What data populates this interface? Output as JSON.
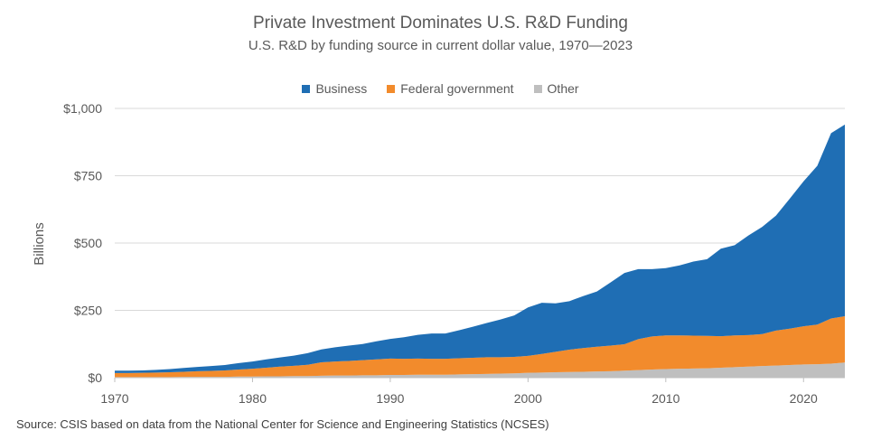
{
  "chart_data": {
    "type": "area",
    "title": "Private Investment Dominates U.S. R&D Funding",
    "subtitle": "U.S. R&D by funding source in current dollar value, 1970—2023",
    "xlabel": "",
    "ylabel": "Billions",
    "x_ticks": [
      "1970",
      "1980",
      "1990",
      "2000",
      "2010",
      "2020"
    ],
    "y_ticks": [
      "$0",
      "$250",
      "$500",
      "$750",
      "$1,000"
    ],
    "ylim": [
      0,
      1000
    ],
    "xlim": [
      1970,
      2023
    ],
    "stacked": true,
    "legend_position": "top-center",
    "x": [
      1970,
      1971,
      1972,
      1973,
      1974,
      1975,
      1976,
      1977,
      1978,
      1979,
      1980,
      1981,
      1982,
      1983,
      1984,
      1985,
      1986,
      1987,
      1988,
      1989,
      1990,
      1991,
      1992,
      1993,
      1994,
      1995,
      1996,
      1997,
      1998,
      1999,
      2000,
      2001,
      2002,
      2003,
      2004,
      2005,
      2006,
      2007,
      2008,
      2009,
      2010,
      2011,
      2012,
      2013,
      2014,
      2015,
      2016,
      2017,
      2018,
      2019,
      2020,
      2021,
      2022,
      2023
    ],
    "series": [
      {
        "name": "Other",
        "color": "#BFBFBF",
        "values": [
          2,
          2,
          2,
          2,
          2,
          3,
          3,
          3,
          3,
          4,
          4,
          5,
          5,
          6,
          6,
          7,
          8,
          8,
          9,
          9,
          10,
          10,
          11,
          11,
          11,
          12,
          13,
          14,
          15,
          16,
          18,
          19,
          20,
          21,
          22,
          23,
          24,
          26,
          28,
          30,
          32,
          33,
          34,
          35,
          37,
          39,
          41,
          43,
          45,
          47,
          49,
          50,
          52,
          56
        ]
      },
      {
        "name": "Federal government",
        "color": "#F28B2C",
        "values": [
          15,
          15,
          16,
          17,
          18,
          19,
          21,
          22,
          24,
          26,
          29,
          32,
          36,
          38,
          42,
          50,
          52,
          54,
          56,
          59,
          61,
          60,
          60,
          59,
          59,
          60,
          61,
          62,
          61,
          61,
          63,
          69,
          76,
          83,
          88,
          92,
          95,
          98,
          115,
          123,
          125,
          124,
          122,
          120,
          117,
          118,
          117,
          119,
          130,
          135,
          142,
          147,
          168,
          172
        ]
      },
      {
        "name": "Business",
        "color": "#1F6EB4",
        "values": [
          9,
          9,
          9,
          10,
          12,
          14,
          16,
          18,
          20,
          24,
          27,
          31,
          34,
          38,
          43,
          48,
          53,
          57,
          60,
          67,
          73,
          80,
          88,
          94,
          94,
          104,
          115,
          127,
          140,
          154,
          180,
          190,
          180,
          180,
          193,
          205,
          235,
          265,
          260,
          250,
          250,
          260,
          275,
          285,
          325,
          335,
          370,
          398,
          427,
          483,
          538,
          590,
          688,
          712
        ]
      }
    ],
    "source": "Source: CSIS  based on data from the National Center for Science and Engineering Statistics (NCSES)"
  }
}
